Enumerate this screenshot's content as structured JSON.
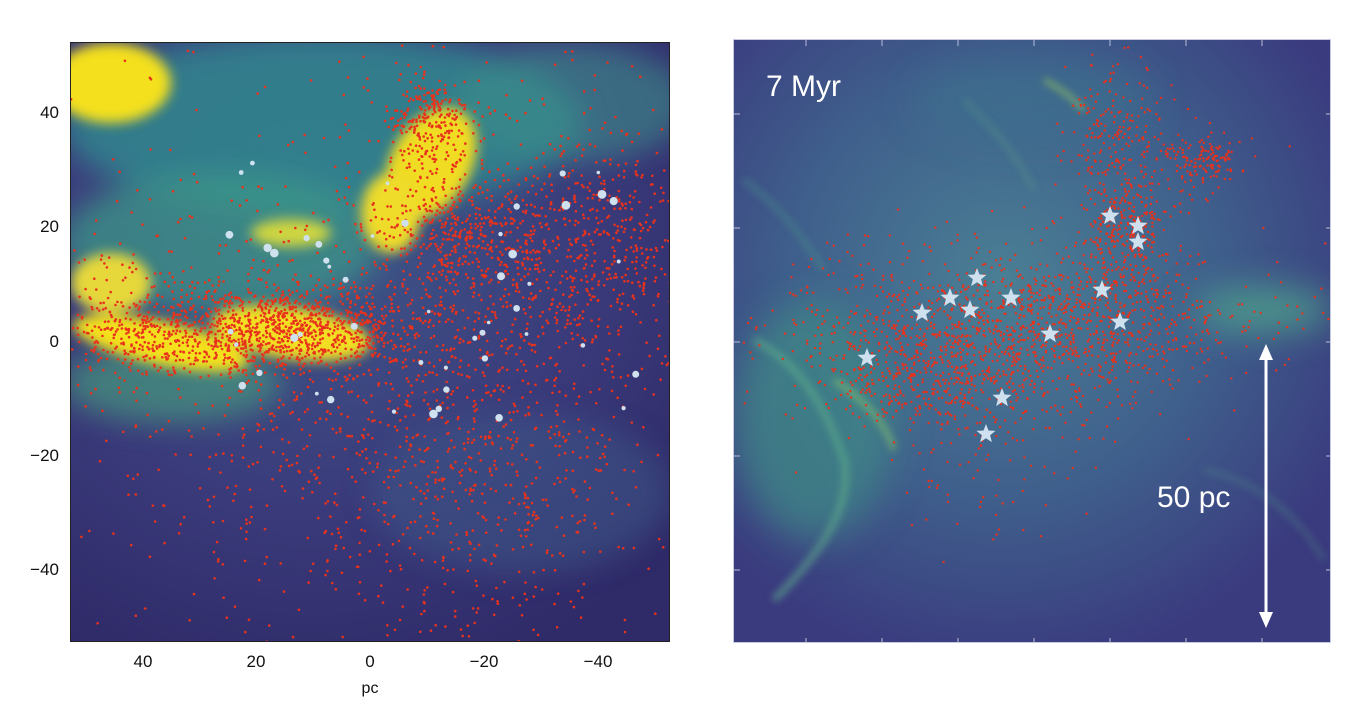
{
  "left_panel": {
    "xlabel": "pc",
    "x_ticks": [
      "40",
      "20",
      "0",
      "−20",
      "−40"
    ],
    "y_ticks": [
      "40",
      "20",
      "0",
      "−20",
      "−40"
    ],
    "x_range_pc": [
      53,
      -53
    ],
    "y_range_pc": [
      -53,
      53
    ]
  },
  "right_panel": {
    "time_label": "7 Myr",
    "scale_label": "50 pc"
  },
  "colors": {
    "background_dark": "#3b3273",
    "gas_teal": "#3a8a8a",
    "gas_yellow": "#f4e01c",
    "stars_red": "#e8321c",
    "massive_stars": "#cfe1ee"
  }
}
